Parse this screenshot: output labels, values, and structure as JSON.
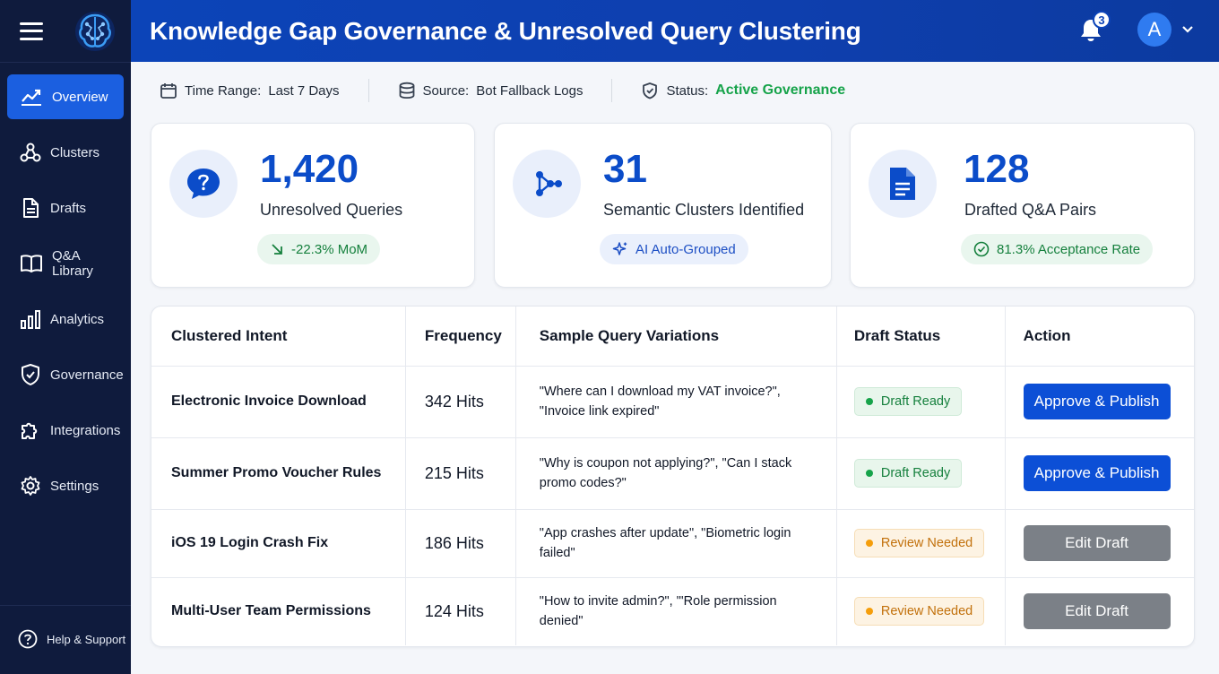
{
  "header": {
    "title": "Knowledge Gap Governance & Unresolved Query Clustering",
    "notification_count": "3",
    "avatar_initial": "A"
  },
  "sidebar": {
    "items": [
      {
        "label": "Overview",
        "icon": "chart-line-icon",
        "active": true
      },
      {
        "label": "Clusters",
        "icon": "cluster-icon"
      },
      {
        "label": "Drafts",
        "icon": "document-icon"
      },
      {
        "label": "Q&A Library",
        "icon": "book-icon"
      },
      {
        "label": "Analytics",
        "icon": "bar-chart-icon"
      },
      {
        "label": "Governance",
        "icon": "shield-icon"
      },
      {
        "label": "Integrations",
        "icon": "puzzle-icon"
      },
      {
        "label": "Settings",
        "icon": "gear-icon"
      }
    ],
    "help_label": "Help & Support"
  },
  "filters": {
    "time_range_label": "Time Range:",
    "time_range_value": "Last 7 Days",
    "source_label": "Source:",
    "source_value": "Bot Fallback Logs",
    "status_label": "Status:",
    "status_value": "Active Governance"
  },
  "stats": [
    {
      "value": "1,420",
      "label": "Unresolved Queries",
      "pill": "-22.3% MoM"
    },
    {
      "value": "31",
      "label": "Semantic Clusters Identified",
      "pill": "AI Auto-Grouped"
    },
    {
      "value": "128",
      "label": "Drafted Q&A Pairs",
      "pill": "81.3% Acceptance Rate"
    }
  ],
  "table": {
    "columns": [
      "Clustered Intent",
      "Frequency",
      "Sample Query Variations",
      "Draft Status",
      "Action"
    ],
    "rows": [
      {
        "intent": "Electronic Invoice Download",
        "frequency": "342 Hits",
        "samples": "\"Where can I download my VAT invoice?\", \"Invoice link expired\"",
        "status": "Draft Ready",
        "action": "Approve & Publish"
      },
      {
        "intent": "Summer Promo Voucher Rules",
        "frequency": "215 Hits",
        "samples": "\"Why is coupon not applying?\", \"Can I stack promo codes?\"",
        "status": "Draft Ready",
        "action": "Approve & Publish"
      },
      {
        "intent": "iOS 19 Login Crash Fix",
        "frequency": "186 Hits",
        "samples": "\"App crashes after update\", \"Biometric login failed\"",
        "status": "Review Needed",
        "action": "Edit Draft"
      },
      {
        "intent": "Multi-User Team Permissions",
        "frequency": "124 Hits",
        "samples": "\"How to invite admin?\", \"'Role permission denied\"",
        "status": "Review Needed",
        "action": "Edit Draft"
      }
    ]
  }
}
